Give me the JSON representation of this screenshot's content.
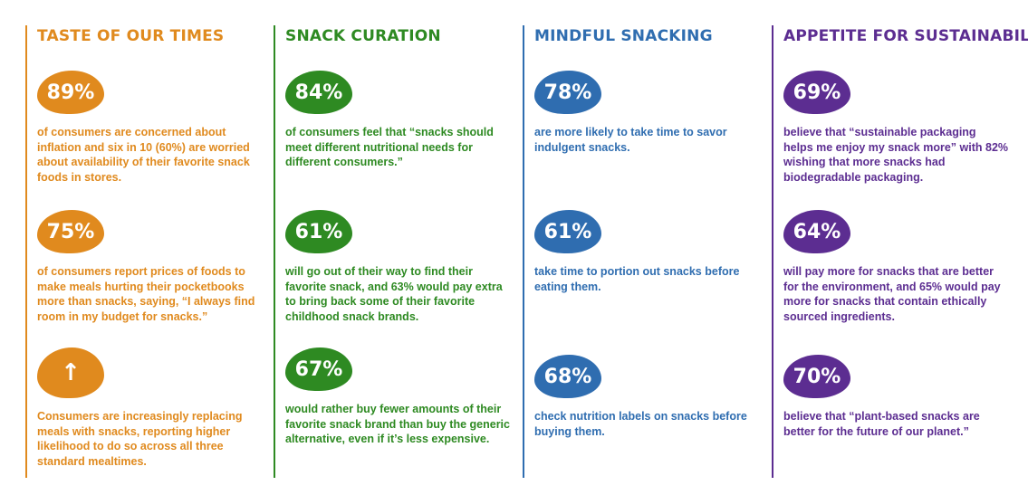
{
  "colors": {
    "orange": "#e08a1e",
    "green": "#2e8a22",
    "blue": "#2f6db0",
    "purple": "#5c2d91"
  },
  "columns": [
    {
      "title": "TASTE OF OUR TIMES",
      "stats": [
        {
          "value": "89%",
          "text": "of consumers are concerned about inflation and six in 10 (60%) are worried about availability of their favorite snack foods in stores."
        },
        {
          "value": "75%",
          "text": "of consumers report prices of foods to make meals hurting their pocketbooks more than snacks, saying, “I always find room in my budget for snacks.”"
        },
        {
          "value": "↑",
          "icon": "up-arrow-icon",
          "text": "Consumers are increasingly replacing meals with snacks, reporting higher likelihood to do so across all three standard mealtimes."
        }
      ]
    },
    {
      "title": "SNACK CURATION",
      "stats": [
        {
          "value": "84%",
          "text": "of consumers feel that “snacks should meet different nutritional needs for different consumers.”"
        },
        {
          "value": "61%",
          "text": "will go out of their way to find their favorite snack, and 63% would pay extra to bring back some of their favorite childhood snack brands."
        },
        {
          "value": "67%",
          "text": "would rather buy fewer amounts of their favorite snack brand than buy the generic alternative, even if it’s less expensive."
        }
      ]
    },
    {
      "title": "MINDFUL SNACKING",
      "stats": [
        {
          "value": "78%",
          "text": "are more likely to take time to savor indulgent snacks."
        },
        {
          "value": "61%",
          "text": "take time to portion out snacks before eating them."
        },
        {
          "value": "68%",
          "text": "check nutrition labels on snacks before buying them."
        }
      ]
    },
    {
      "title": "APPETITE FOR SUSTAINABILITY",
      "stats": [
        {
          "value": "69%",
          "text": "believe that “sustainable packaging helps me enjoy my snack more” with 82% wishing that more snacks had biodegradable packaging."
        },
        {
          "value": "64%",
          "text": "will pay more for snacks that are better for the environment, and 65% would pay more for snacks that contain ethically sourced ingredients."
        },
        {
          "value": "70%",
          "text": "believe that “plant-based snacks are better for the future of our planet.”"
        }
      ]
    }
  ]
}
